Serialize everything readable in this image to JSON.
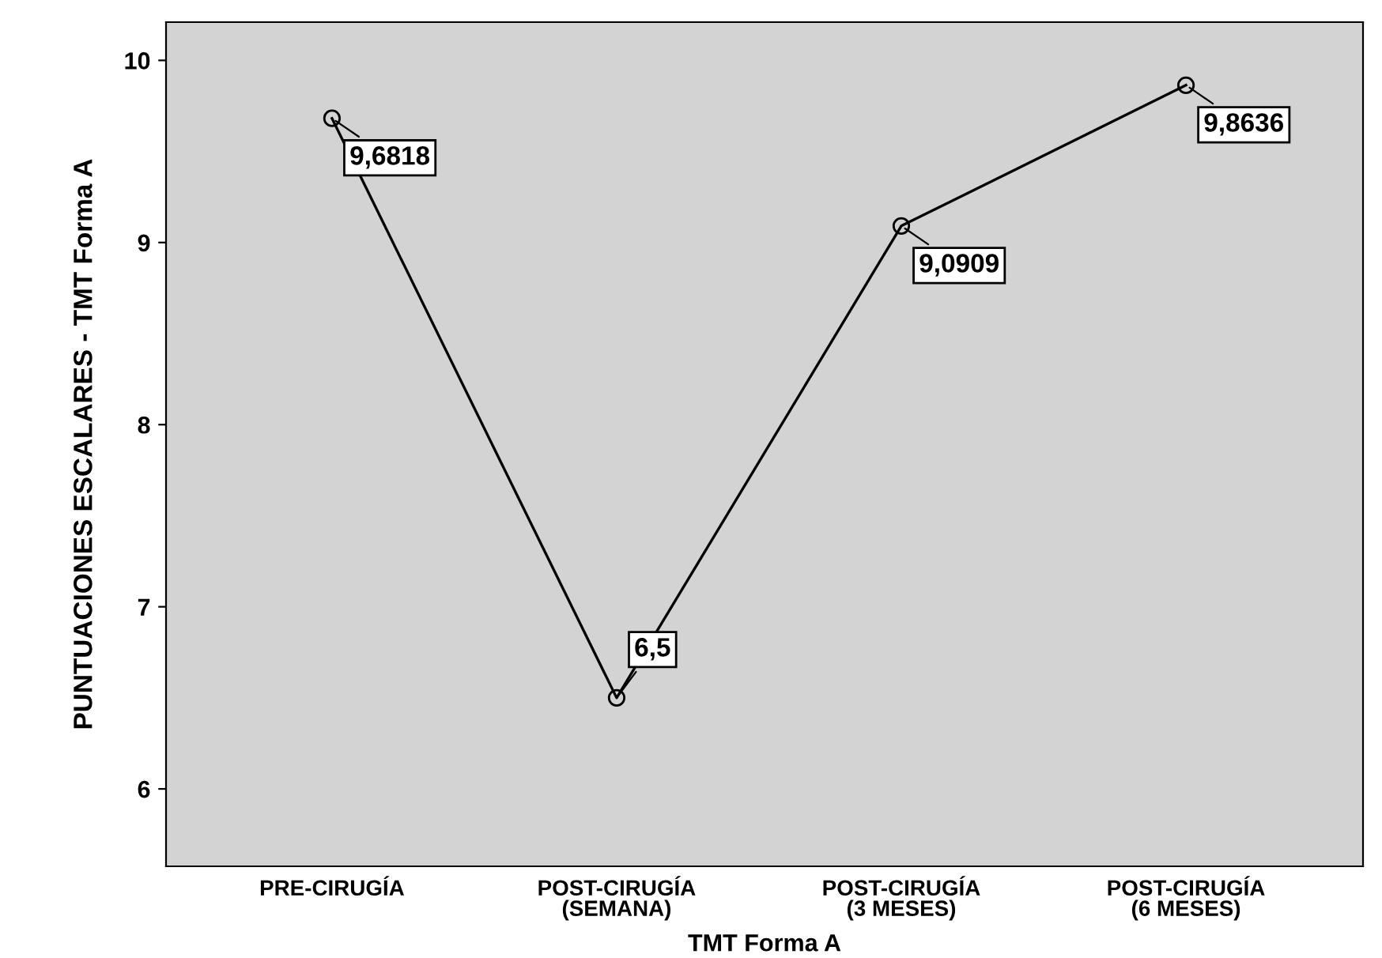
{
  "chart_data": {
    "type": "line",
    "xlabel": "TMT Forma A",
    "ylabel": "PUNTUACIONES ESCALARES - TMT Forma A",
    "categories": [
      "PRE-CIRUGÍA",
      "POST-CIRUGÍA\n(SEMANA)",
      "POST-CIRUGÍA\n(3 MESES)",
      "POST-CIRUGÍA\n(6 MESES)"
    ],
    "series": [
      {
        "color": "#000000",
        "values": [
          9.6818,
          6.5,
          9.0909,
          9.8636
        ],
        "value_labels": [
          "9,6818",
          "6,5",
          "9,0909",
          "9,8636"
        ]
      }
    ],
    "ylim": [
      5.575,
      10.21
    ],
    "yticks": [
      6,
      7,
      8,
      9,
      10
    ],
    "marker": "circle",
    "line_style": "solid",
    "grid": false,
    "legend": false
  }
}
